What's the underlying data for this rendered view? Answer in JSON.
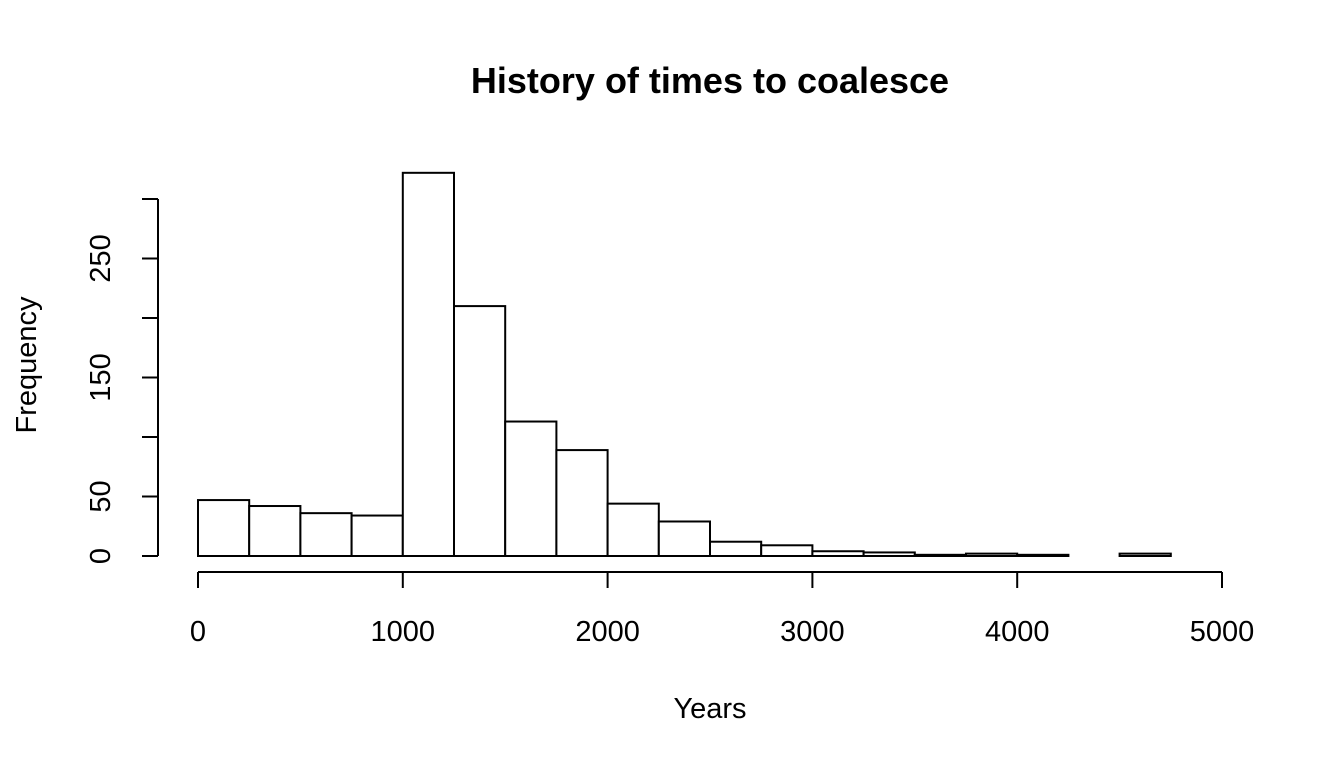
{
  "chart_data": {
    "type": "bar",
    "title": "History of times to coalesce",
    "xlabel": "Years",
    "ylabel": "Frequency",
    "xlim": [
      0,
      5000
    ],
    "ylim": [
      0,
      300
    ],
    "x_ticks": [
      0,
      1000,
      2000,
      3000,
      4000,
      5000
    ],
    "x_tick_labels": [
      "0",
      "1000",
      "2000",
      "3000",
      "4000",
      "5000"
    ],
    "y_ticks": [
      0,
      50,
      100,
      150,
      200,
      250,
      300
    ],
    "y_tick_labels": [
      "0",
      "50",
      "",
      "150",
      "",
      "250",
      ""
    ],
    "bin_edges": [
      0,
      250,
      500,
      750,
      1000,
      1250,
      1500,
      1750,
      2000,
      2250,
      2500,
      2750,
      3000,
      3250,
      3500,
      3750,
      4000,
      4250,
      4500,
      4750
    ],
    "values": [
      47,
      42,
      36,
      34,
      322,
      210,
      113,
      89,
      44,
      29,
      12,
      9,
      4,
      3,
      1,
      2,
      1,
      0,
      2
    ],
    "grid": false,
    "fill_color": "#ffffff",
    "stroke_color": "#000000"
  }
}
